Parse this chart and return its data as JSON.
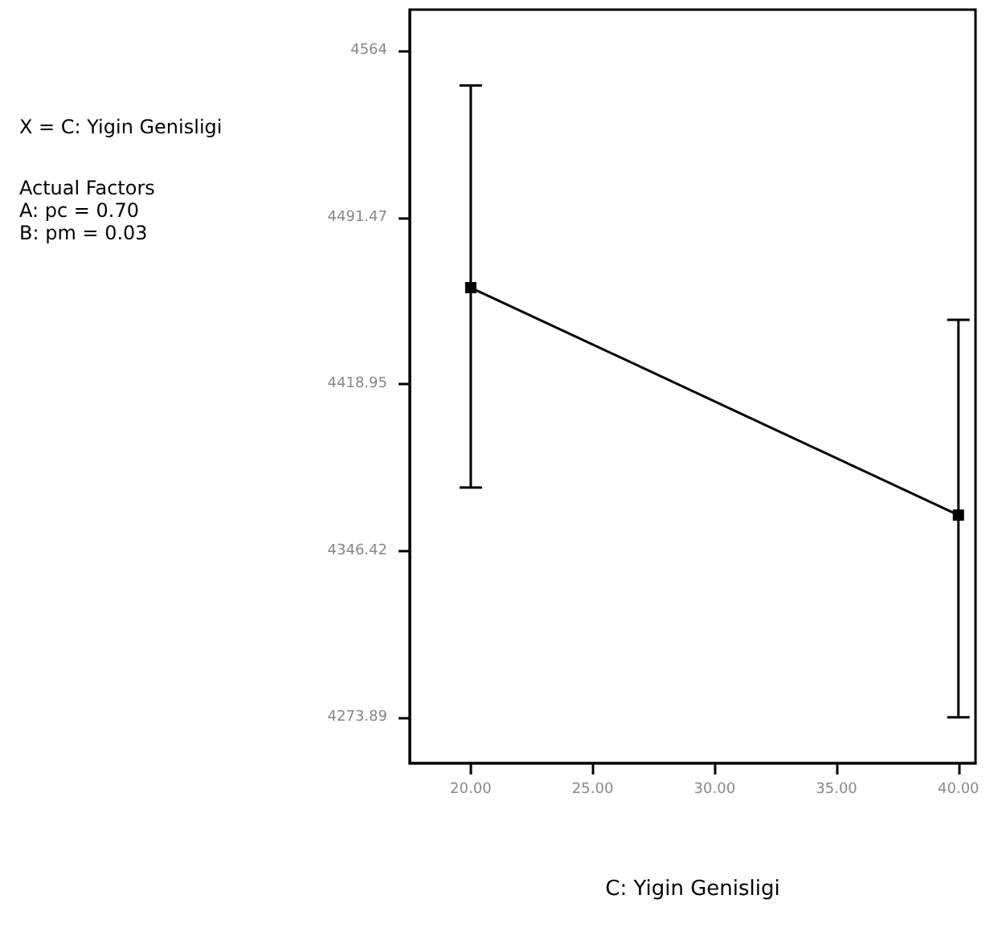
{
  "chart_data": {
    "type": "line",
    "xlabel": "C: Yigin Genisligi",
    "annotations": [
      "X = C: Yigin Genisligi",
      "Actual Factors\nA: pc = 0.70\nB: pm = 0.03"
    ],
    "x": [
      20,
      40
    ],
    "series": [
      {
        "color": "#000000",
        "values": [
          4461,
          4362
        ],
        "errors": [
          [
            4374,
            4549
          ],
          [
            4274,
            4447
          ]
        ]
      }
    ],
    "xlim": [
      17.5,
      40.7
    ],
    "ylim": [
      4254,
      4582
    ],
    "xticks": [
      {
        "value": 20,
        "label": "20.00"
      },
      {
        "value": 25,
        "label": "25.00"
      },
      {
        "value": 30,
        "label": "30.00"
      },
      {
        "value": 35,
        "label": "35.00"
      },
      {
        "value": 40,
        "label": "40.00"
      }
    ],
    "yticks": [
      4273.89,
      4346.42,
      4418.95,
      4491.47,
      4564
    ],
    "marker": "square",
    "line_style": "solid"
  }
}
